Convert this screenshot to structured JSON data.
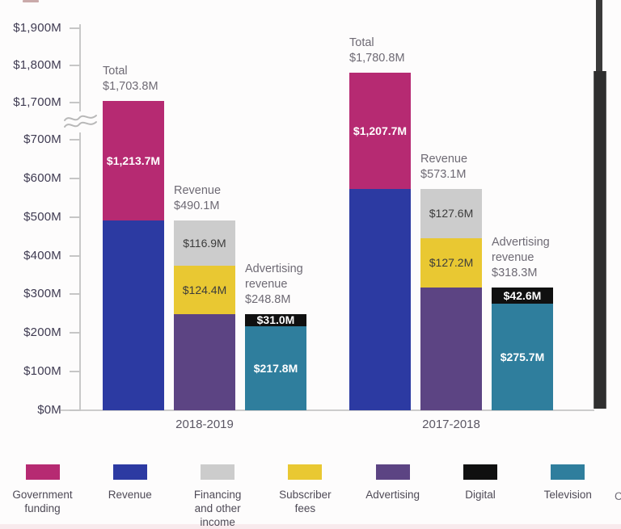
{
  "chart_data": {
    "type": "bar",
    "stacked": true,
    "title": "",
    "xlabel": "",
    "ylabel": "",
    "value_unit": "$M",
    "axis_break_between": [
      700,
      1700
    ],
    "y_axis_ticks": [
      {
        "value": 1900,
        "label": "$1,900M"
      },
      {
        "value": 1800,
        "label": "$1,800M"
      },
      {
        "value": 1700,
        "label": "$1,700M"
      },
      {
        "value": 700,
        "label": "$700M"
      },
      {
        "value": 600,
        "label": "$600M"
      },
      {
        "value": 500,
        "label": "$500M"
      },
      {
        "value": 400,
        "label": "$400M"
      },
      {
        "value": 300,
        "label": "$300M"
      },
      {
        "value": 200,
        "label": "$200M"
      },
      {
        "value": 100,
        "label": "$100M"
      },
      {
        "value": 0,
        "label": "$0M"
      }
    ],
    "palette": [
      {
        "name": "Government funding",
        "color": "#b62a72",
        "text": "#ffffff"
      },
      {
        "name": "Revenue",
        "color": "#2c3aa2",
        "text": "#ffffff"
      },
      {
        "name": "Financing and other income",
        "color": "#cccccc",
        "text": "#3c3c3c"
      },
      {
        "name": "Subscriber fees",
        "color": "#e9c832",
        "text": "#3c3c3c"
      },
      {
        "name": "Advertising",
        "color": "#5c4483",
        "text": "#ffffff"
      },
      {
        "name": "Digital",
        "color": "#101010",
        "text": "#ffffff"
      },
      {
        "name": "Television",
        "color": "#2f7e9d",
        "text": "#ffffff"
      }
    ],
    "groups": [
      {
        "category": "2018-2019",
        "bars": [
          {
            "annotation": [
              "Total",
              "$1,703.8M"
            ],
            "segments": [
              {
                "series": "Revenue",
                "value": 490.1,
                "label": ""
              },
              {
                "series": "Government funding",
                "value": 1213.7,
                "label": "$1,213.7M"
              }
            ]
          },
          {
            "annotation": [
              "Revenue",
              "$490.1M"
            ],
            "segments": [
              {
                "series": "Advertising",
                "value": 248.8,
                "label": ""
              },
              {
                "series": "Subscriber fees",
                "value": 124.4,
                "label": "$124.4M"
              },
              {
                "series": "Financing and other income",
                "value": 116.9,
                "label": "$116.9M"
              }
            ]
          },
          {
            "annotation": [
              "Advertising",
              "revenue",
              "$248.8M"
            ],
            "segments": [
              {
                "series": "Television",
                "value": 217.8,
                "label": "$217.8M"
              },
              {
                "series": "Digital",
                "value": 31.0,
                "label": "$31.0M"
              }
            ]
          }
        ]
      },
      {
        "category": "2017-2018",
        "bars": [
          {
            "annotation": [
              "Total",
              "$1,780.8M"
            ],
            "segments": [
              {
                "series": "Revenue",
                "value": 573.1,
                "label": ""
              },
              {
                "series": "Government funding",
                "value": 1207.7,
                "label": "$1,207.7M"
              }
            ]
          },
          {
            "annotation": [
              "Revenue",
              "$573.1M"
            ],
            "segments": [
              {
                "series": "Advertising",
                "value": 318.3,
                "label": ""
              },
              {
                "series": "Subscriber fees",
                "value": 127.2,
                "label": "$127.2M"
              },
              {
                "series": "Financing and other income",
                "value": 127.6,
                "label": "$127.6M"
              }
            ]
          },
          {
            "annotation": [
              "Advertising",
              "revenue",
              "$318.3M"
            ],
            "segments": [
              {
                "series": "Television",
                "value": 275.7,
                "label": "$275.7M"
              },
              {
                "series": "Digital",
                "value": 42.6,
                "label": "$42.6M"
              }
            ]
          }
        ]
      }
    ]
  },
  "legend": {
    "items": [
      {
        "name": "Government funding",
        "lines": [
          "Government",
          "funding"
        ]
      },
      {
        "name": "Revenue",
        "lines": [
          "Revenue"
        ]
      },
      {
        "name": "Financing and other income",
        "lines": [
          "Financing",
          "and other",
          "income"
        ]
      },
      {
        "name": "Subscriber fees",
        "lines": [
          "Subscriber",
          "fees"
        ]
      },
      {
        "name": "Advertising",
        "lines": [
          "Advertising"
        ]
      },
      {
        "name": "Digital",
        "lines": [
          "Digital"
        ]
      },
      {
        "name": "Television",
        "lines": [
          "Television"
        ]
      }
    ],
    "partial_label": "C"
  },
  "colors": {
    "axis_line": "#c8c8c8",
    "tick_text": "#3f3b52",
    "annotation_text": "#6e6a74",
    "scrollbar": "#2f2f2f"
  }
}
